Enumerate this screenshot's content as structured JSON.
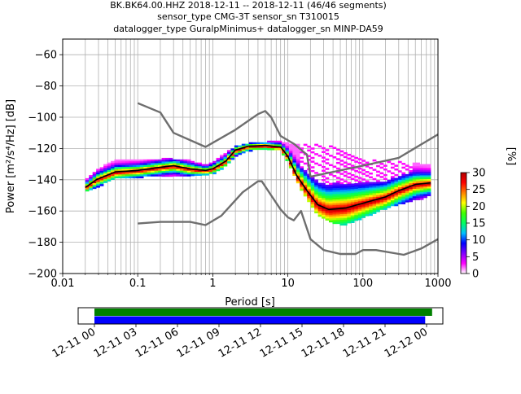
{
  "title": {
    "line1": "BK.BK64.00.HHZ   2018-12-11 -- 2018-12-11  (46/46 segments)",
    "line2": "sensor_type CMG-3T sensor_sn T310015",
    "line3": "datalogger_type GuralpMinimus+ datalogger_sn MINP-DA59"
  },
  "colorbar": {
    "label": "[%]",
    "ticks": [
      "0",
      "5",
      "10",
      "15",
      "20",
      "25",
      "30"
    ],
    "range": [
      0,
      30
    ],
    "colors": [
      "#ffffff",
      "#ff00ff",
      "#8000ff",
      "#0000ff",
      "#00c0ff",
      "#00ff60",
      "#40ff00",
      "#ffff00",
      "#ff8000",
      "#ff0000",
      "#b00000"
    ]
  },
  "chart_data": {
    "type": "heatmap",
    "xlabel": "Period [s]",
    "ylabel": "Power [m²/s⁴/Hz] [dB]",
    "x_scale": "log",
    "xlim": [
      0.01,
      1000
    ],
    "ylim": [
      -200,
      -50
    ],
    "x_ticks": [
      {
        "v": 0.01,
        "label": "0.01"
      },
      {
        "v": 0.1,
        "label": "0.1"
      },
      {
        "v": 1,
        "label": "1"
      },
      {
        "v": 10,
        "label": "10"
      },
      {
        "v": 100,
        "label": "100"
      },
      {
        "v": 1000,
        "label": "1000"
      }
    ],
    "y_ticks": [
      -60,
      -80,
      -100,
      -120,
      -140,
      -160,
      -180,
      -200
    ],
    "y_tick_labels": [
      "−60",
      "−80",
      "−100",
      "−120",
      "−140",
      "−160",
      "−180",
      "−200"
    ],
    "grid": true,
    "series": [
      {
        "color": "#6e6e6e",
        "points": [
          [
            0.1,
            -91
          ],
          [
            0.2,
            -97
          ],
          [
            0.3,
            -110
          ],
          [
            0.8,
            -119
          ],
          [
            2,
            -108
          ],
          [
            4,
            -98
          ],
          [
            5,
            -96
          ],
          [
            6,
            -100
          ],
          [
            8,
            -112
          ],
          [
            12,
            -117
          ],
          [
            18,
            -124
          ],
          [
            20,
            -138
          ],
          [
            100,
            -131
          ],
          [
            300,
            -126
          ],
          [
            1000,
            -111
          ]
        ]
      },
      {
        "color": "#6e6e6e",
        "points": [
          [
            0.1,
            -168
          ],
          [
            0.2,
            -167
          ],
          [
            0.5,
            -167
          ],
          [
            0.8,
            -169
          ],
          [
            1.3,
            -163
          ],
          [
            2.5,
            -148
          ],
          [
            4,
            -141
          ],
          [
            4.5,
            -141
          ],
          [
            6,
            -150
          ],
          [
            8,
            -159
          ],
          [
            10,
            -164
          ],
          [
            12,
            -166
          ],
          [
            15,
            -160
          ],
          [
            20,
            -178
          ],
          [
            30,
            -185
          ],
          [
            50,
            -187.5
          ],
          [
            80,
            -187.5
          ],
          [
            100,
            -185
          ],
          [
            150,
            -185
          ],
          [
            350,
            -188
          ],
          [
            600,
            -184
          ],
          [
            1000,
            -178
          ]
        ]
      },
      {
        "color": "#000000",
        "points": [
          [
            0.02,
            -145
          ],
          [
            0.028,
            -140
          ],
          [
            0.05,
            -135
          ],
          [
            0.1,
            -134
          ],
          [
            0.2,
            -132
          ],
          [
            0.3,
            -131
          ],
          [
            0.5,
            -133
          ],
          [
            0.8,
            -134
          ],
          [
            1,
            -133
          ],
          [
            1.5,
            -128
          ],
          [
            2,
            -121
          ],
          [
            3,
            -118.5
          ],
          [
            5,
            -118
          ],
          [
            8,
            -119
          ],
          [
            10,
            -125
          ],
          [
            13,
            -137
          ],
          [
            18,
            -147
          ],
          [
            25,
            -156
          ],
          [
            35,
            -159
          ],
          [
            60,
            -158
          ],
          [
            100,
            -155
          ],
          [
            200,
            -151
          ],
          [
            300,
            -147
          ],
          [
            500,
            -143
          ],
          [
            800,
            -142
          ]
        ]
      }
    ],
    "density": {
      "note": "probabilistic PSD histogram band",
      "band": [
        [
          0.02,
          -147,
          -139
        ],
        [
          0.03,
          -144,
          -132
        ],
        [
          0.05,
          -139,
          -127
        ],
        [
          0.1,
          -138,
          -127
        ],
        [
          0.2,
          -137,
          -126
        ],
        [
          0.3,
          -137,
          -126
        ],
        [
          0.5,
          -137,
          -127
        ],
        [
          0.8,
          -136,
          -130
        ],
        [
          1,
          -136,
          -128
        ],
        [
          1.5,
          -131,
          -122
        ],
        [
          2,
          -125,
          -118
        ],
        [
          3,
          -121,
          -116
        ],
        [
          5,
          -120,
          -115
        ],
        [
          8,
          -121,
          -115
        ],
        [
          10,
          -128,
          -116
        ],
        [
          13,
          -140,
          -117
        ],
        [
          18,
          -152,
          -117
        ],
        [
          25,
          -162,
          -117
        ],
        [
          40,
          -168,
          -118
        ],
        [
          60,
          -168,
          -120
        ],
        [
          100,
          -164,
          -125
        ],
        [
          200,
          -158,
          -128
        ],
        [
          400,
          -154,
          -128
        ],
        [
          800,
          -150,
          -130
        ]
      ]
    }
  },
  "timeline": {
    "tick_labels": [
      "12-11 00",
      "12-11 03",
      "12-11 06",
      "12-11 09",
      "12-11 12",
      "12-11 15",
      "12-11 18",
      "12-11 21",
      "12-12 00"
    ],
    "total_hours": 27,
    "bars": [
      {
        "color": "#008000",
        "start_h": 0,
        "end_h": 24.4
      },
      {
        "color": "#0000ff",
        "start_h": 0,
        "end_h": 23.9
      }
    ]
  }
}
